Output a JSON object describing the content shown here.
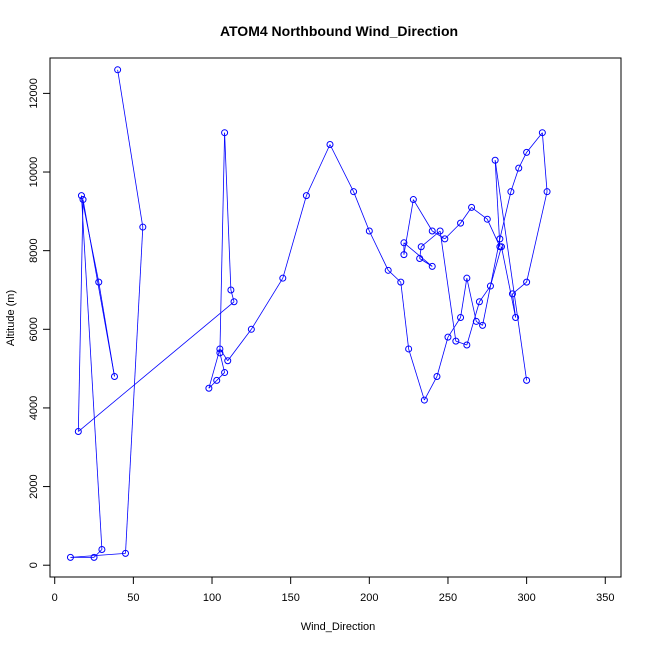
{
  "chart_data": {
    "type": "line",
    "title": "ATOM4 Northbound Wind_Direction",
    "xlabel": "Wind_Direction",
    "ylabel": "Altitude (m)",
    "xlim": [
      -3,
      360
    ],
    "ylim": [
      -300,
      12900
    ],
    "x_ticks": [
      0,
      50,
      100,
      150,
      200,
      250,
      300,
      350
    ],
    "y_ticks": [
      0,
      2000,
      4000,
      6000,
      8000,
      10000,
      12000
    ],
    "x_tick_labels": [
      "0",
      "50",
      "100",
      "150",
      "200",
      "250",
      "300",
      "350"
    ],
    "y_tick_labels": [
      "0",
      "2000",
      "4000",
      "6000",
      "8000",
      "10000",
      "12000"
    ],
    "series_color": "#0000ff",
    "grid": false,
    "marker": "open-circle",
    "series": [
      {
        "x": [
          40,
          56,
          45,
          10,
          25,
          30,
          17,
          28,
          38,
          18,
          15,
          114,
          112,
          108,
          105,
          108,
          103,
          98,
          105,
          110,
          125,
          145,
          160,
          175,
          190,
          200,
          212,
          220,
          225,
          235,
          243,
          250,
          258,
          262,
          268,
          272,
          283,
          290,
          295,
          300,
          310,
          313,
          300,
          291,
          293,
          284,
          277,
          270,
          262,
          255,
          245,
          233,
          232,
          240,
          222,
          222,
          228,
          240,
          248,
          258,
          265,
          275,
          283,
          280,
          300
        ],
        "y": [
          12600,
          8600,
          300,
          200,
          200,
          400,
          9400,
          7200,
          4800,
          9300,
          3400,
          6700,
          7000,
          11000,
          5400,
          4900,
          4700,
          4500,
          5500,
          5200,
          6000,
          7300,
          9400,
          10700,
          9500,
          8500,
          7500,
          7200,
          5500,
          4200,
          4800,
          5800,
          6300,
          7300,
          6200,
          6100,
          8300,
          9500,
          10100,
          10500,
          11000,
          9500,
          7200,
          6900,
          6300,
          8100,
          7100,
          6700,
          5600,
          5700,
          8500,
          8100,
          7800,
          7600,
          8200,
          7900,
          9300,
          8500,
          8300,
          8700,
          9100,
          8800,
          8100,
          10300,
          4700
        ]
      }
    ]
  }
}
